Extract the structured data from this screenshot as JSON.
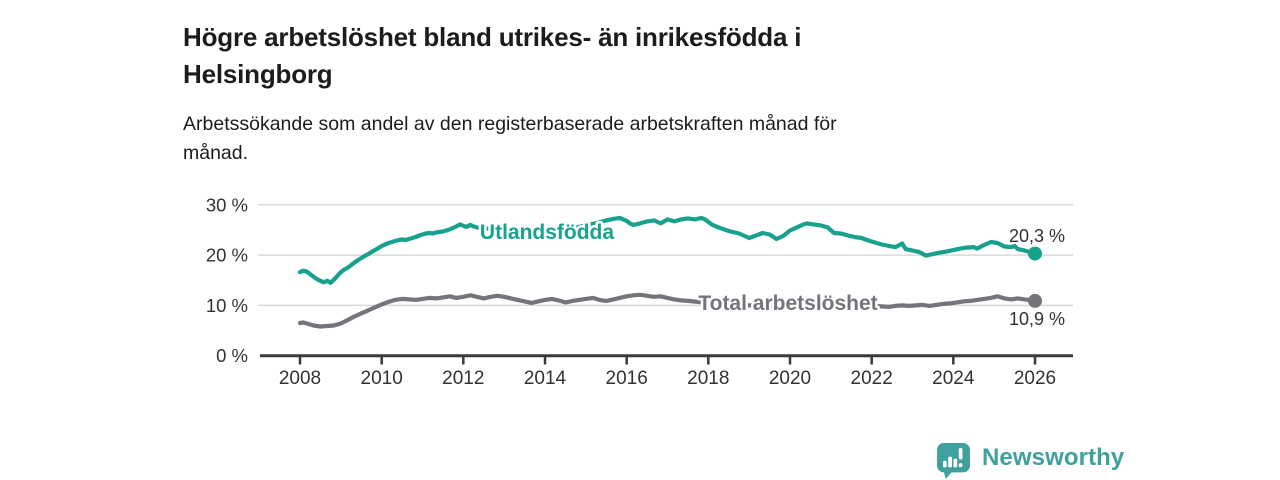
{
  "title": {
    "line1": "Högre arbetslöshet bland utrikes- än inrikesfödda i",
    "line2": "Helsingborg"
  },
  "subtitle": {
    "line1": "Arbetssökande som andel av den registerbaserade arbetskraften månad för",
    "line2": "månad."
  },
  "branding": {
    "name": "Newsworthy",
    "logo_icon": "bar-chart-speech-bubble-icon",
    "color": "#3fa09e"
  },
  "chart_data": {
    "type": "line",
    "title": "Högre arbetslöshet bland utrikes- än inrikesfödda i Helsingborg",
    "xlabel": "",
    "ylabel": "",
    "unit": "%",
    "grid": "horizontal",
    "legend_position": "inline-labels",
    "x_axis": {
      "range": [
        2007.1,
        2026.9
      ],
      "ticks": [
        {
          "year": 2008,
          "label": "2008"
        },
        {
          "year": 2010,
          "label": "2010"
        },
        {
          "year": 2012,
          "label": "2012"
        },
        {
          "year": 2014,
          "label": "2014"
        },
        {
          "year": 2016,
          "label": "2016"
        },
        {
          "year": 2018,
          "label": "2018"
        },
        {
          "year": 2020,
          "label": "2020"
        },
        {
          "year": 2022,
          "label": "2022"
        },
        {
          "year": 2024,
          "label": "2024"
        },
        {
          "year": 2026,
          "label": "2026"
        }
      ]
    },
    "y_axis": {
      "range": [
        0,
        30
      ],
      "ticks": [
        {
          "value": 0,
          "label": "0 %"
        },
        {
          "value": 10,
          "label": "10 %"
        },
        {
          "value": 20,
          "label": "20 %"
        },
        {
          "value": 30,
          "label": "30 %"
        }
      ]
    },
    "style": {
      "grid_color": "#d9d9d9",
      "axis_color": "#3a3a3a",
      "axis_text_color": "#333333"
    },
    "series": [
      {
        "name": "Utlandsfödda",
        "slug": "utlandsfodda",
        "color": "#18a28e",
        "end_label": "20,3 %",
        "end_label_side": "above",
        "label_pos": {
          "x": 2014.05,
          "y": 24.6
        },
        "points": [
          [
            2008.0,
            16.6
          ],
          [
            2008.08,
            16.9
          ],
          [
            2008.17,
            16.7
          ],
          [
            2008.25,
            16.2
          ],
          [
            2008.33,
            15.7
          ],
          [
            2008.42,
            15.2
          ],
          [
            2008.5,
            14.9
          ],
          [
            2008.58,
            14.6
          ],
          [
            2008.67,
            14.9
          ],
          [
            2008.75,
            14.5
          ],
          [
            2008.83,
            15.1
          ],
          [
            2008.92,
            15.9
          ],
          [
            2009.0,
            16.6
          ],
          [
            2009.08,
            17.1
          ],
          [
            2009.17,
            17.5
          ],
          [
            2009.25,
            18.0
          ],
          [
            2009.33,
            18.5
          ],
          [
            2009.42,
            19.0
          ],
          [
            2009.5,
            19.4
          ],
          [
            2009.58,
            19.8
          ],
          [
            2009.67,
            20.2
          ],
          [
            2009.75,
            20.6
          ],
          [
            2009.83,
            21.0
          ],
          [
            2009.92,
            21.4
          ],
          [
            2010.0,
            21.8
          ],
          [
            2010.08,
            22.1
          ],
          [
            2010.17,
            22.4
          ],
          [
            2010.25,
            22.6
          ],
          [
            2010.33,
            22.8
          ],
          [
            2010.42,
            23.0
          ],
          [
            2010.5,
            23.1
          ],
          [
            2010.58,
            23.0
          ],
          [
            2010.67,
            23.2
          ],
          [
            2010.75,
            23.4
          ],
          [
            2010.83,
            23.6
          ],
          [
            2010.92,
            23.9
          ],
          [
            2011.0,
            24.1
          ],
          [
            2011.08,
            24.3
          ],
          [
            2011.17,
            24.4
          ],
          [
            2011.25,
            24.3
          ],
          [
            2011.33,
            24.5
          ],
          [
            2011.42,
            24.6
          ],
          [
            2011.5,
            24.7
          ],
          [
            2011.58,
            24.9
          ],
          [
            2011.67,
            25.1
          ],
          [
            2011.75,
            25.4
          ],
          [
            2011.83,
            25.7
          ],
          [
            2011.92,
            26.1
          ],
          [
            2012.0,
            25.8
          ],
          [
            2012.08,
            25.6
          ],
          [
            2012.17,
            26.0
          ],
          [
            2012.25,
            25.7
          ],
          [
            2012.33,
            25.5
          ],
          [
            2012.5,
            25.3
          ],
          [
            2012.67,
            25.2
          ],
          [
            2012.83,
            25.1
          ],
          [
            2013.0,
            25.0
          ],
          [
            2013.25,
            24.9
          ],
          [
            2013.5,
            24.7
          ],
          [
            2013.75,
            24.6
          ],
          [
            2014.0,
            24.5
          ],
          [
            2014.17,
            24.6
          ],
          [
            2014.33,
            24.8
          ],
          [
            2014.5,
            25.0
          ],
          [
            2014.67,
            25.3
          ],
          [
            2014.83,
            25.6
          ],
          [
            2015.0,
            25.9
          ],
          [
            2015.17,
            26.2
          ],
          [
            2015.33,
            26.5
          ],
          [
            2015.5,
            26.9
          ],
          [
            2015.67,
            27.2
          ],
          [
            2015.83,
            27.4
          ],
          [
            2016.0,
            26.8
          ],
          [
            2016.08,
            26.3
          ],
          [
            2016.17,
            26.0
          ],
          [
            2016.33,
            26.3
          ],
          [
            2016.5,
            26.7
          ],
          [
            2016.67,
            26.9
          ],
          [
            2016.83,
            26.3
          ],
          [
            2017.0,
            27.1
          ],
          [
            2017.17,
            26.7
          ],
          [
            2017.33,
            27.1
          ],
          [
            2017.5,
            27.3
          ],
          [
            2017.67,
            27.1
          ],
          [
            2017.83,
            27.4
          ],
          [
            2017.92,
            27.1
          ],
          [
            2018.08,
            26.1
          ],
          [
            2018.25,
            25.5
          ],
          [
            2018.5,
            24.8
          ],
          [
            2018.75,
            24.3
          ],
          [
            2019.0,
            23.4
          ],
          [
            2019.17,
            23.9
          ],
          [
            2019.33,
            24.4
          ],
          [
            2019.5,
            24.1
          ],
          [
            2019.67,
            23.2
          ],
          [
            2019.83,
            23.8
          ],
          [
            2020.0,
            24.9
          ],
          [
            2020.17,
            25.5
          ],
          [
            2020.33,
            26.1
          ],
          [
            2020.42,
            26.3
          ],
          [
            2020.58,
            26.1
          ],
          [
            2020.75,
            25.9
          ],
          [
            2020.92,
            25.5
          ],
          [
            2021.08,
            24.4
          ],
          [
            2021.25,
            24.3
          ],
          [
            2021.42,
            23.9
          ],
          [
            2021.58,
            23.6
          ],
          [
            2021.75,
            23.4
          ],
          [
            2021.92,
            22.9
          ],
          [
            2022.08,
            22.5
          ],
          [
            2022.25,
            22.1
          ],
          [
            2022.42,
            21.8
          ],
          [
            2022.58,
            21.6
          ],
          [
            2022.75,
            22.3
          ],
          [
            2022.83,
            21.2
          ],
          [
            2023.0,
            20.9
          ],
          [
            2023.17,
            20.6
          ],
          [
            2023.33,
            19.9
          ],
          [
            2023.5,
            20.2
          ],
          [
            2023.67,
            20.5
          ],
          [
            2023.83,
            20.7
          ],
          [
            2024.0,
            21.0
          ],
          [
            2024.17,
            21.3
          ],
          [
            2024.33,
            21.5
          ],
          [
            2024.5,
            21.6
          ],
          [
            2024.58,
            21.3
          ],
          [
            2024.75,
            22.0
          ],
          [
            2024.92,
            22.6
          ],
          [
            2025.08,
            22.4
          ],
          [
            2025.25,
            21.7
          ],
          [
            2025.42,
            21.6
          ],
          [
            2025.5,
            21.8
          ],
          [
            2025.58,
            21.2
          ],
          [
            2025.75,
            20.9
          ],
          [
            2025.92,
            20.5
          ],
          [
            2026.0,
            20.3
          ]
        ]
      },
      {
        "name": "Total arbetslöshet",
        "slug": "total-arbetsloshet",
        "color": "#74747b",
        "end_label": "10,9 %",
        "end_label_side": "below",
        "label_pos": {
          "x": 2019.95,
          "y": 10.5
        },
        "points": [
          [
            2008.0,
            6.5
          ],
          [
            2008.08,
            6.6
          ],
          [
            2008.17,
            6.4
          ],
          [
            2008.25,
            6.2
          ],
          [
            2008.33,
            6.0
          ],
          [
            2008.5,
            5.8
          ],
          [
            2008.67,
            5.9
          ],
          [
            2008.83,
            6.0
          ],
          [
            2009.0,
            6.4
          ],
          [
            2009.17,
            7.1
          ],
          [
            2009.33,
            7.8
          ],
          [
            2009.5,
            8.4
          ],
          [
            2009.67,
            9.0
          ],
          [
            2009.83,
            9.6
          ],
          [
            2010.0,
            10.2
          ],
          [
            2010.17,
            10.7
          ],
          [
            2010.33,
            11.1
          ],
          [
            2010.5,
            11.3
          ],
          [
            2010.67,
            11.2
          ],
          [
            2010.83,
            11.1
          ],
          [
            2011.0,
            11.3
          ],
          [
            2011.17,
            11.5
          ],
          [
            2011.33,
            11.4
          ],
          [
            2011.5,
            11.6
          ],
          [
            2011.67,
            11.8
          ],
          [
            2011.83,
            11.5
          ],
          [
            2012.0,
            11.7
          ],
          [
            2012.17,
            12.0
          ],
          [
            2012.33,
            11.7
          ],
          [
            2012.5,
            11.4
          ],
          [
            2012.67,
            11.7
          ],
          [
            2012.83,
            11.9
          ],
          [
            2013.0,
            11.7
          ],
          [
            2013.17,
            11.4
          ],
          [
            2013.33,
            11.1
          ],
          [
            2013.5,
            10.8
          ],
          [
            2013.67,
            10.5
          ],
          [
            2013.83,
            10.8
          ],
          [
            2014.0,
            11.1
          ],
          [
            2014.17,
            11.3
          ],
          [
            2014.33,
            11.0
          ],
          [
            2014.5,
            10.6
          ],
          [
            2014.67,
            10.9
          ],
          [
            2014.83,
            11.1
          ],
          [
            2015.0,
            11.3
          ],
          [
            2015.17,
            11.5
          ],
          [
            2015.33,
            11.1
          ],
          [
            2015.5,
            10.9
          ],
          [
            2015.67,
            11.2
          ],
          [
            2015.83,
            11.5
          ],
          [
            2016.0,
            11.8
          ],
          [
            2016.17,
            12.0
          ],
          [
            2016.33,
            12.1
          ],
          [
            2016.5,
            11.9
          ],
          [
            2016.67,
            11.7
          ],
          [
            2016.83,
            11.8
          ],
          [
            2017.0,
            11.5
          ],
          [
            2017.17,
            11.2
          ],
          [
            2017.33,
            11.0
          ],
          [
            2017.5,
            10.9
          ],
          [
            2017.75,
            10.7
          ],
          [
            2018.0,
            10.5
          ],
          [
            2018.25,
            10.4
          ],
          [
            2018.5,
            10.2
          ],
          [
            2018.75,
            10.1
          ],
          [
            2019.0,
            10.0
          ],
          [
            2019.25,
            9.9
          ],
          [
            2019.5,
            9.8
          ],
          [
            2019.75,
            10.0
          ],
          [
            2020.0,
            10.4
          ],
          [
            2020.25,
            11.0
          ],
          [
            2020.5,
            11.3
          ],
          [
            2020.75,
            11.1
          ],
          [
            2021.0,
            10.8
          ],
          [
            2021.25,
            10.5
          ],
          [
            2021.5,
            10.2
          ],
          [
            2021.75,
            10.0
          ],
          [
            2022.0,
            9.9
          ],
          [
            2022.25,
            9.8
          ],
          [
            2022.42,
            9.7
          ],
          [
            2022.58,
            9.9
          ],
          [
            2022.75,
            10.0
          ],
          [
            2022.92,
            9.9
          ],
          [
            2023.08,
            10.0
          ],
          [
            2023.25,
            10.1
          ],
          [
            2023.42,
            9.9
          ],
          [
            2023.58,
            10.1
          ],
          [
            2023.75,
            10.3
          ],
          [
            2023.92,
            10.4
          ],
          [
            2024.08,
            10.6
          ],
          [
            2024.25,
            10.8
          ],
          [
            2024.42,
            10.9
          ],
          [
            2024.58,
            11.1
          ],
          [
            2024.75,
            11.3
          ],
          [
            2024.92,
            11.5
          ],
          [
            2025.08,
            11.8
          ],
          [
            2025.25,
            11.4
          ],
          [
            2025.42,
            11.2
          ],
          [
            2025.58,
            11.4
          ],
          [
            2025.75,
            11.2
          ],
          [
            2025.92,
            11.0
          ],
          [
            2026.0,
            10.9
          ]
        ]
      }
    ]
  }
}
